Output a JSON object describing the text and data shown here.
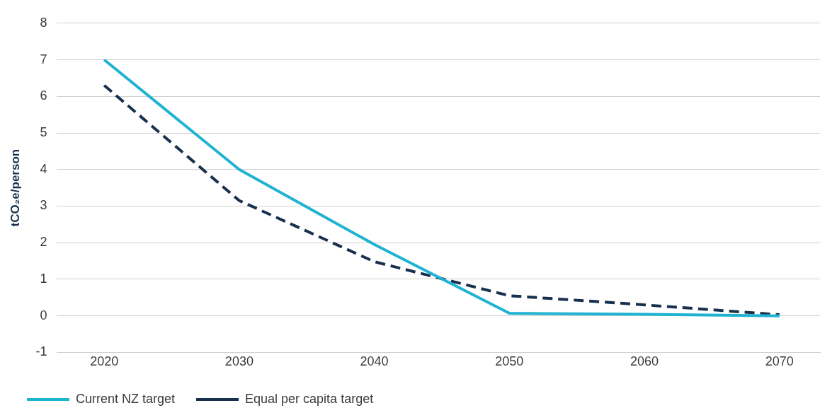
{
  "chart_data": {
    "type": "line",
    "ylabel": "tCO₂e/person",
    "x": [
      2020,
      2030,
      2040,
      2050,
      2060,
      2070
    ],
    "xlim": [
      2016.5,
      2073
    ],
    "xticks": [
      2020,
      2030,
      2040,
      2050,
      2060,
      2070
    ],
    "ylim": [
      -1,
      8
    ],
    "yticks": [
      -1,
      0,
      1,
      2,
      3,
      4,
      5,
      6,
      7,
      8
    ],
    "grid": "y",
    "legend": "bottom left",
    "marker": "none",
    "series": [
      {
        "name": "Current NZ target",
        "color": "#1fb3d2",
        "values": [
          7,
          4,
          1.95,
          0.07,
          0.04,
          0
        ],
        "line_style": "solid"
      },
      {
        "name": "Equal per capita target",
        "color": "#17304d",
        "values": [
          6.3,
          3.15,
          1.48,
          0.55,
          0.3,
          0.03
        ],
        "line_style": "dashed"
      }
    ]
  }
}
